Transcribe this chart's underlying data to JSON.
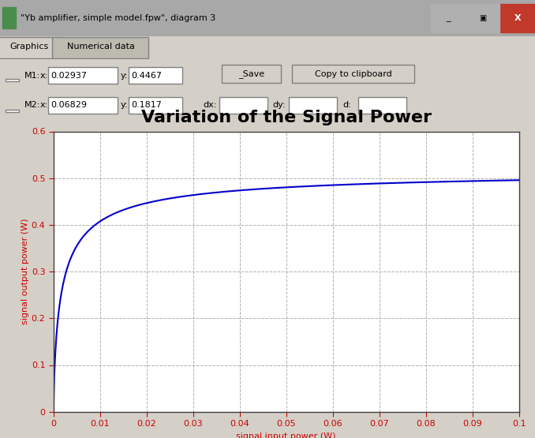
{
  "title": "Variation of the Signal Power",
  "xlabel": "signal input power (W)",
  "ylabel": "signal output power (W)",
  "xlim": [
    0,
    0.1
  ],
  "ylim": [
    0,
    0.6
  ],
  "xticks": [
    0,
    0.01,
    0.02,
    0.03,
    0.04,
    0.05,
    0.06,
    0.07,
    0.08,
    0.09,
    0.1
  ],
  "yticks": [
    0,
    0.1,
    0.2,
    0.3,
    0.4,
    0.5,
    0.6
  ],
  "line_color": "#0000cc",
  "line_width": 1.5,
  "grid_color": "#b0b0b0",
  "grid_linestyle": "--",
  "plot_bg_color": "#ffffff",
  "title_fontsize": 16,
  "title_fontweight": "bold",
  "label_fontsize": 8,
  "tick_fontsize": 8,
  "label_color": "#cc0000",
  "tick_color": "#cc0000",
  "window_bg": "#d4d0c8",
  "titlebar_bg": "#4a6fa5",
  "titlebar_text": "\"Yb amplifier, simple model.fpw\", diagram 3",
  "tab1": "Graphics",
  "tab2": "Numerical data",
  "m1_x": "0.02937",
  "m1_y": "0.4467",
  "m2_x": "0.06829",
  "m2_y": "0.1817",
  "curve_Psat": 0.52,
  "curve_x_half": 0.0018,
  "curve_n": 0.75,
  "fig_width": 6.78,
  "fig_height": 5.55,
  "fig_dpi": 100
}
